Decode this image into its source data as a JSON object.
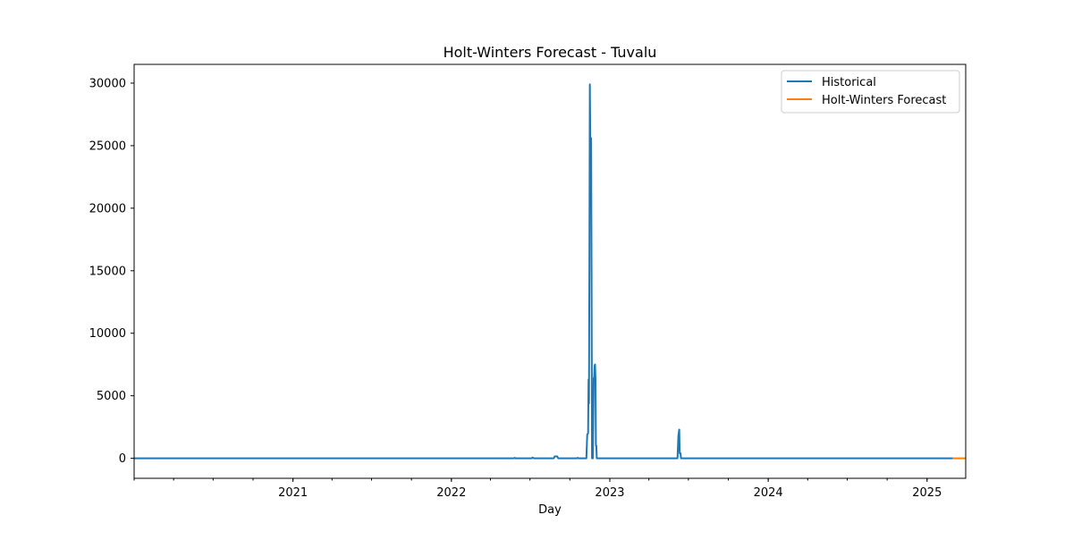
{
  "chart_data": {
    "type": "line",
    "title": "Holt-Winters Forecast - Tuvalu",
    "xlabel": "Day",
    "ylabel": "",
    "xlim": [
      "2020-01-01",
      "2025-03-31"
    ],
    "ylim": [
      -1600,
      31500
    ],
    "x_ticks": [
      "2021",
      "2022",
      "2023",
      "2024",
      "2025"
    ],
    "y_ticks": [
      0,
      5000,
      10000,
      15000,
      20000,
      25000,
      30000
    ],
    "grid": false,
    "legend_position": "top-right",
    "series": [
      {
        "name": "Historical",
        "color": "#1f77b4",
        "points": [
          [
            "2020-01-01",
            0
          ],
          [
            "2022-05-25",
            0
          ],
          [
            "2022-05-27",
            40
          ],
          [
            "2022-05-29",
            0
          ],
          [
            "2022-07-05",
            0
          ],
          [
            "2022-07-07",
            60
          ],
          [
            "2022-07-10",
            0
          ],
          [
            "2022-08-25",
            0
          ],
          [
            "2022-08-27",
            150
          ],
          [
            "2022-09-02",
            150
          ],
          [
            "2022-09-04",
            0
          ],
          [
            "2022-10-17",
            0
          ],
          [
            "2022-10-19",
            40
          ],
          [
            "2022-10-21",
            0
          ],
          [
            "2022-11-08",
            0
          ],
          [
            "2022-11-10",
            1900
          ],
          [
            "2022-11-12",
            2000
          ],
          [
            "2022-11-13",
            6300
          ],
          [
            "2022-11-14",
            4400
          ],
          [
            "2022-11-15",
            15600
          ],
          [
            "2022-11-16",
            29900
          ],
          [
            "2022-11-17",
            25600
          ],
          [
            "2022-11-19",
            25600
          ],
          [
            "2022-11-20",
            14300
          ],
          [
            "2022-11-21",
            0
          ],
          [
            "2022-11-23",
            0
          ],
          [
            "2022-11-25",
            6400
          ],
          [
            "2022-11-26",
            6500
          ],
          [
            "2022-11-27",
            7400
          ],
          [
            "2022-11-28",
            7500
          ],
          [
            "2022-11-29",
            6400
          ],
          [
            "2022-11-30",
            1000
          ],
          [
            "2022-12-01",
            1000
          ],
          [
            "2022-12-02",
            0
          ],
          [
            "2023-06-06",
            0
          ],
          [
            "2023-06-08",
            1800
          ],
          [
            "2023-06-10",
            2300
          ],
          [
            "2023-06-11",
            400
          ],
          [
            "2023-06-13",
            400
          ],
          [
            "2023-06-14",
            0
          ],
          [
            "2025-03-01",
            0
          ]
        ]
      },
      {
        "name": "Holt-Winters Forecast",
        "color": "#ff7f0e",
        "points": [
          [
            "2025-03-01",
            0
          ],
          [
            "2025-03-31",
            0
          ]
        ]
      }
    ]
  }
}
